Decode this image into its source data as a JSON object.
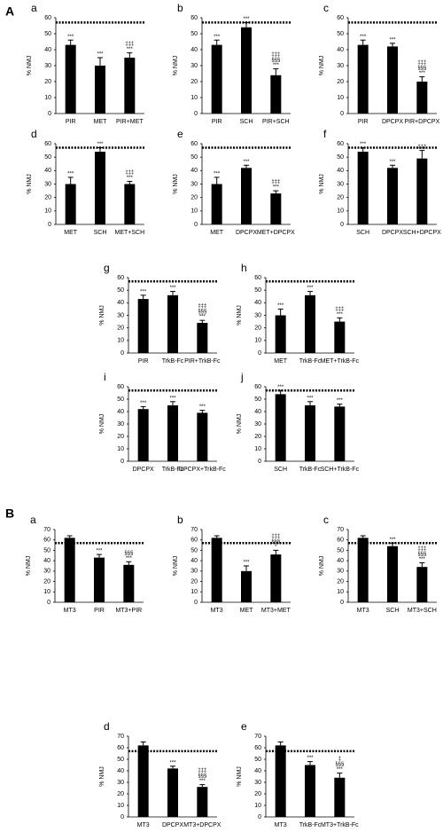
{
  "sections": [
    "A",
    "B"
  ],
  "chart_data": [
    {
      "type": "bar",
      "panel": "a",
      "ylabel": "% NMJ",
      "categories": [
        "PIR",
        "MET",
        "PIR+MET"
      ],
      "values": [
        43,
        30,
        35
      ],
      "errors": [
        3,
        5,
        3
      ],
      "annotations": [
        [
          "***"
        ],
        [
          "***"
        ],
        [
          "‡‡‡",
          "***"
        ]
      ],
      "ylim": [
        0,
        60
      ],
      "yticks": [
        0,
        10,
        20,
        30,
        40,
        50,
        60
      ],
      "reference_line": 57,
      "color": "#000000"
    },
    {
      "type": "bar",
      "panel": "b",
      "ylabel": "% NMJ",
      "categories": [
        "PIR",
        "SCH",
        "PIR+SCH"
      ],
      "values": [
        43,
        54,
        24
      ],
      "errors": [
        3,
        3,
        4
      ],
      "annotations": [
        [
          "***"
        ],
        [
          "***"
        ],
        [
          "‡‡‡",
          "§§§",
          "***"
        ]
      ],
      "ylim": [
        0,
        60
      ],
      "yticks": [
        0,
        10,
        20,
        30,
        40,
        50,
        60
      ],
      "reference_line": 57,
      "color": "#000000"
    },
    {
      "type": "bar",
      "panel": "c",
      "ylabel": "% NMJ",
      "categories": [
        "PIR",
        "DPCPX",
        "PIR+DPCPX"
      ],
      "values": [
        43,
        42,
        20
      ],
      "errors": [
        3,
        2,
        3
      ],
      "annotations": [
        [
          "***"
        ],
        [
          "***"
        ],
        [
          "‡‡‡",
          "§§§",
          "***"
        ]
      ],
      "ylim": [
        0,
        60
      ],
      "yticks": [
        0,
        10,
        20,
        30,
        40,
        50,
        60
      ],
      "reference_line": 57,
      "color": "#000000"
    },
    {
      "type": "bar",
      "panel": "d",
      "ylabel": "% NMJ",
      "categories": [
        "MET",
        "SCH",
        "MET+SCH"
      ],
      "values": [
        30,
        54,
        30
      ],
      "errors": [
        5,
        3,
        2
      ],
      "annotations": [
        [
          "***"
        ],
        [
          "***"
        ],
        [
          "‡‡‡",
          "***"
        ]
      ],
      "ylim": [
        0,
        60
      ],
      "yticks": [
        0,
        10,
        20,
        30,
        40,
        50,
        60
      ],
      "reference_line": 57,
      "color": "#000000"
    },
    {
      "type": "bar",
      "panel": "e",
      "ylabel": "% NMJ",
      "categories": [
        "MET",
        "DPCPX",
        "MET+DPCPX"
      ],
      "values": [
        30,
        42,
        23
      ],
      "errors": [
        5,
        2,
        2
      ],
      "annotations": [
        [
          "***"
        ],
        [
          "***"
        ],
        [
          "‡‡‡",
          "***"
        ]
      ],
      "ylim": [
        0,
        60
      ],
      "yticks": [
        0,
        10,
        20,
        30,
        40,
        50,
        60
      ],
      "reference_line": 57,
      "color": "#000000"
    },
    {
      "type": "bar",
      "panel": "f",
      "ylabel": "% NMJ",
      "categories": [
        "SCH",
        "DPCPX",
        "SCH+DPCPX"
      ],
      "values": [
        54,
        42,
        49
      ],
      "errors": [
        3,
        2,
        6
      ],
      "annotations": [
        [
          "***"
        ],
        [
          "***"
        ],
        [
          "‡‡‡"
        ]
      ],
      "ylim": [
        0,
        60
      ],
      "yticks": [
        0,
        10,
        20,
        30,
        40,
        50,
        60
      ],
      "reference_line": 57,
      "color": "#000000"
    },
    {
      "type": "bar",
      "panel": "g",
      "ylabel": "% NMJ",
      "categories": [
        "PIR",
        "TrkB-Fc",
        "PIR+TrkB-Fc"
      ],
      "values": [
        43,
        46,
        24
      ],
      "errors": [
        3,
        3,
        2
      ],
      "annotations": [
        [
          "***"
        ],
        [
          "***"
        ],
        [
          "‡‡‡",
          "§§§",
          "***"
        ]
      ],
      "ylim": [
        0,
        60
      ],
      "yticks": [
        0,
        10,
        20,
        30,
        40,
        50,
        60
      ],
      "reference_line": 57,
      "color": "#000000"
    },
    {
      "type": "bar",
      "panel": "h",
      "ylabel": "% NMJ",
      "categories": [
        "MET",
        "TrkB-Fc",
        "MET+TrkB-Fc"
      ],
      "values": [
        30,
        46,
        25
      ],
      "errors": [
        5,
        3,
        3
      ],
      "annotations": [
        [
          "***"
        ],
        [
          "***"
        ],
        [
          "‡‡‡",
          "***"
        ]
      ],
      "ylim": [
        0,
        60
      ],
      "yticks": [
        0,
        10,
        20,
        30,
        40,
        50,
        60
      ],
      "reference_line": 57,
      "color": "#000000"
    },
    {
      "type": "bar",
      "panel": "i",
      "ylabel": "% NMJ",
      "categories": [
        "DPCPX",
        "TrkB-Fc",
        "DPCPX+TrkB-Fc"
      ],
      "values": [
        42,
        45,
        39
      ],
      "errors": [
        2,
        3,
        2
      ],
      "annotations": [
        [
          "***"
        ],
        [
          "***"
        ],
        [
          "***"
        ]
      ],
      "ylim": [
        0,
        60
      ],
      "yticks": [
        0,
        10,
        20,
        30,
        40,
        50,
        60
      ],
      "reference_line": 57,
      "color": "#000000"
    },
    {
      "type": "bar",
      "panel": "j",
      "ylabel": "% NMJ",
      "categories": [
        "SCH",
        "TrkB-Fc",
        "SCH+TrkB-Fc"
      ],
      "values": [
        54,
        45,
        44
      ],
      "errors": [
        3,
        3,
        2
      ],
      "annotations": [
        [
          "***"
        ],
        [
          "***"
        ],
        [
          "***"
        ]
      ],
      "ylim": [
        0,
        60
      ],
      "yticks": [
        0,
        10,
        20,
        30,
        40,
        50,
        60
      ],
      "reference_line": 57,
      "color": "#000000"
    },
    {
      "type": "bar",
      "panel": "a",
      "ylabel": "% NMJ",
      "categories": [
        "MT3",
        "PIR",
        "MT3+PIR"
      ],
      "values": [
        62,
        43,
        36
      ],
      "errors": [
        2,
        3,
        3
      ],
      "annotations": [
        [],
        [
          "***"
        ],
        [
          "§§§",
          "***"
        ]
      ],
      "ylim": [
        0,
        70
      ],
      "yticks": [
        0,
        10,
        20,
        30,
        40,
        50,
        60,
        70
      ],
      "reference_line": 57,
      "color": "#000000"
    },
    {
      "type": "bar",
      "panel": "b",
      "ylabel": "% NMJ",
      "categories": [
        "MT3",
        "MET",
        "MT3+MET"
      ],
      "values": [
        62,
        30,
        46
      ],
      "errors": [
        2,
        5,
        4
      ],
      "annotations": [
        [],
        [
          "***"
        ],
        [
          "‡‡‡",
          "§§§",
          "*"
        ]
      ],
      "ylim": [
        0,
        70
      ],
      "yticks": [
        0,
        10,
        20,
        30,
        40,
        50,
        60,
        70
      ],
      "reference_line": 57,
      "color": "#000000"
    },
    {
      "type": "bar",
      "panel": "c",
      "ylabel": "% NMJ",
      "categories": [
        "MT3",
        "SCH",
        "MT3+SCH"
      ],
      "values": [
        62,
        54,
        34
      ],
      "errors": [
        2,
        3,
        4
      ],
      "annotations": [
        [],
        [
          "***"
        ],
        [
          "‡‡‡",
          "§§§",
          "***"
        ]
      ],
      "ylim": [
        0,
        70
      ],
      "yticks": [
        0,
        10,
        20,
        30,
        40,
        50,
        60,
        70
      ],
      "reference_line": 57,
      "color": "#000000"
    },
    {
      "type": "bar",
      "panel": "d",
      "ylabel": "% NMJ",
      "categories": [
        "MT3",
        "DPCPX",
        "MT3+DPCPX"
      ],
      "values": [
        62,
        42,
        26
      ],
      "errors": [
        3,
        2,
        2
      ],
      "annotations": [
        [],
        [
          "***"
        ],
        [
          "‡‡‡",
          "§§§",
          "***"
        ]
      ],
      "ylim": [
        0,
        70
      ],
      "yticks": [
        0,
        10,
        20,
        30,
        40,
        50,
        60,
        70
      ],
      "reference_line": 57,
      "color": "#000000"
    },
    {
      "type": "bar",
      "panel": "e",
      "ylabel": "% NMJ",
      "categories": [
        "MT3",
        "TrkB-Fc",
        "MT3+TrkB-Fc"
      ],
      "values": [
        62,
        45,
        34
      ],
      "errors": [
        3,
        3,
        4
      ],
      "annotations": [
        [],
        [
          "***"
        ],
        [
          "‡",
          "§§§",
          "***"
        ]
      ],
      "ylim": [
        0,
        70
      ],
      "yticks": [
        0,
        10,
        20,
        30,
        40,
        50,
        60,
        70
      ],
      "reference_line": 57,
      "color": "#000000"
    }
  ]
}
